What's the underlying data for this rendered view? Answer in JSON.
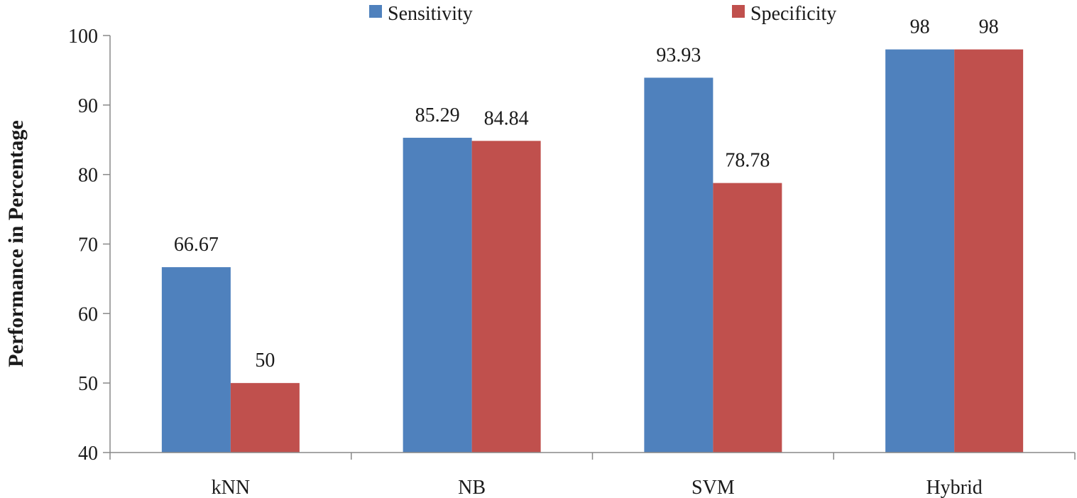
{
  "chart_data": {
    "type": "bar",
    "title": "",
    "xlabel": "",
    "ylabel": "Performance in Percentage",
    "ylim": [
      40,
      100
    ],
    "yticks": [
      40,
      50,
      60,
      70,
      80,
      90,
      100
    ],
    "categories": [
      "kNN",
      "NB",
      "SVM",
      "Hybrid"
    ],
    "series": [
      {
        "name": "Sensitivity",
        "color": "#4F81BD",
        "values": [
          66.67,
          85.29,
          93.93,
          98
        ],
        "labels": [
          "66.67",
          "85.29",
          "93.93",
          "98"
        ]
      },
      {
        "name": "Specificity",
        "color": "#C0504D",
        "values": [
          50,
          84.84,
          78.78,
          98
        ],
        "labels": [
          "50",
          "84.84",
          "78.78",
          "98"
        ]
      }
    ],
    "legend": "top",
    "grid": false
  }
}
